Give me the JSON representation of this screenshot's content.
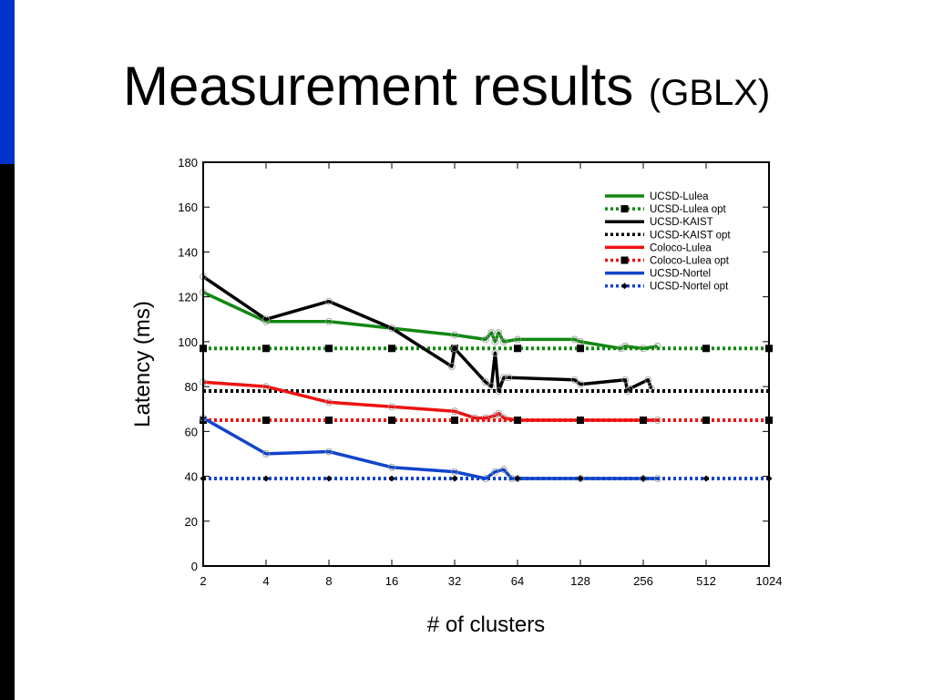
{
  "slide": {
    "title_main": "Measurement results",
    "title_sub": "(GBLX)",
    "accent_colors": {
      "top_bar": "#0033cc",
      "bottom_bar": "#000000"
    }
  },
  "chart_data": {
    "type": "line",
    "xlabel": "# of clusters",
    "ylabel": "Latency (ms)",
    "x_scale": "log2",
    "xlim": [
      2,
      1024
    ],
    "ylim": [
      0,
      180
    ],
    "x_ticks": [
      2,
      4,
      8,
      16,
      32,
      64,
      128,
      256,
      512,
      1024
    ],
    "x_tick_labels": [
      "2",
      "4",
      "8",
      "16",
      "32",
      "64",
      "128",
      "256",
      "512",
      "1024"
    ],
    "y_ticks": [
      0,
      20,
      40,
      60,
      80,
      100,
      120,
      140,
      160,
      180
    ],
    "y_tick_labels": [
      "0",
      "20",
      "40",
      "60",
      "80",
      "100",
      "120",
      "140",
      "160",
      "180"
    ],
    "legend_position": "top-right",
    "grid": false,
    "series": [
      {
        "name": "UCSD-Lulea",
        "color": "#118811",
        "style": "solid",
        "x": [
          2,
          4,
          8,
          16,
          32,
          45,
          48,
          50,
          52,
          55,
          64,
          120,
          128,
          200,
          210,
          256,
          300
        ],
        "y": [
          122,
          109,
          109,
          106,
          103,
          101,
          104,
          100,
          104,
          100,
          101,
          101,
          100,
          97,
          98,
          97,
          98
        ]
      },
      {
        "name": "UCSD-Lulea opt",
        "color": "#118811",
        "style": "dotted",
        "marker": "square",
        "x": [
          2,
          4,
          8,
          16,
          32,
          64,
          128,
          512,
          1024
        ],
        "y": [
          97,
          97,
          97,
          97,
          97,
          97,
          97,
          97,
          97
        ]
      },
      {
        "name": "UCSD-KAIST",
        "color": "#000000",
        "style": "solid",
        "x": [
          2,
          4,
          8,
          16,
          31,
          32,
          45,
          48,
          50,
          52,
          55,
          58,
          120,
          128,
          210,
          215,
          220,
          270,
          280
        ],
        "y": [
          129,
          110,
          118,
          106,
          89,
          97,
          82,
          80,
          95,
          78,
          84,
          84,
          83,
          81,
          83,
          78,
          79,
          83,
          79
        ]
      },
      {
        "name": "UCSD-KAIST opt",
        "color": "#000000",
        "style": "dotted",
        "x": [
          2,
          1024
        ],
        "y": [
          78,
          78
        ]
      },
      {
        "name": "Coloco-Lulea",
        "color": "#ee1111",
        "style": "solid",
        "x": [
          2,
          4,
          8,
          16,
          32,
          40,
          45,
          50,
          52,
          55,
          64,
          128,
          256,
          300
        ],
        "y": [
          82,
          80,
          73,
          71,
          69,
          66,
          66,
          67,
          68,
          66,
          65,
          65,
          65,
          65
        ]
      },
      {
        "name": "Coloco-Lulea  opt",
        "color": "#ee1111",
        "style": "dotted",
        "marker": "square",
        "x": [
          2,
          4,
          8,
          16,
          32,
          64,
          128,
          256,
          512,
          1024
        ],
        "y": [
          65,
          65,
          65,
          65,
          65,
          65,
          65,
          65,
          65,
          65
        ]
      },
      {
        "name": "UCSD-Nortel",
        "color": "#1144cc",
        "style": "solid",
        "x": [
          2,
          4,
          8,
          16,
          32,
          45,
          50,
          55,
          60,
          64,
          128,
          256,
          300
        ],
        "y": [
          66,
          50,
          51,
          44,
          42,
          39,
          42,
          43,
          39,
          39,
          39,
          39,
          39
        ]
      },
      {
        "name": "UCSD-Nortel  opt",
        "color": "#1144cc",
        "style": "dotted",
        "marker": "diamond",
        "x": [
          2,
          4,
          8,
          16,
          32,
          64,
          128,
          256,
          512,
          1024
        ],
        "y": [
          39,
          39,
          39,
          39,
          39,
          39,
          39,
          39,
          39,
          39
        ]
      }
    ]
  }
}
